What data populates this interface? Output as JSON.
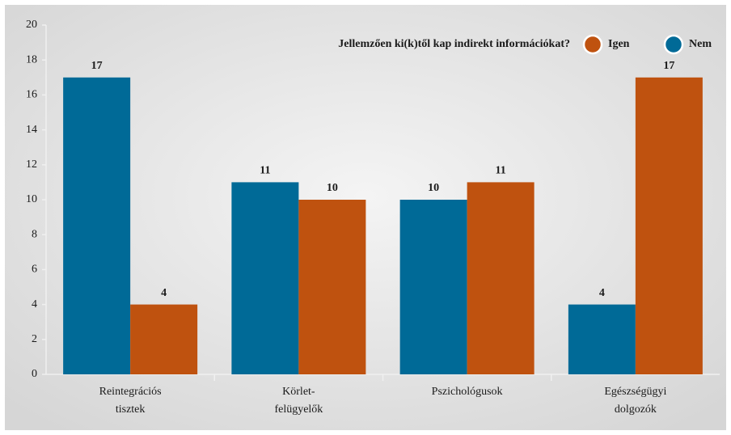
{
  "chart_data": {
    "type": "bar",
    "legend_title": "Jellemzően ki(k)től kap indirekt információkat?",
    "categories": [
      [
        "Reintegrációs",
        "tisztek"
      ],
      [
        "Körlet-",
        "felügyelők"
      ],
      [
        "Pszichológusok"
      ],
      [
        "Egészségügyi",
        "dolgozók"
      ]
    ],
    "series": [
      {
        "name": "Nem",
        "color": "#006a97",
        "values": [
          17,
          11,
          10,
          4
        ]
      },
      {
        "name": "Igen",
        "color": "#bf520f",
        "values": [
          4,
          10,
          11,
          17
        ]
      }
    ],
    "ylim": [
      0,
      20
    ],
    "yticks": [
      0,
      2,
      4,
      6,
      8,
      10,
      12,
      14,
      16,
      18,
      20
    ],
    "grid": false
  }
}
